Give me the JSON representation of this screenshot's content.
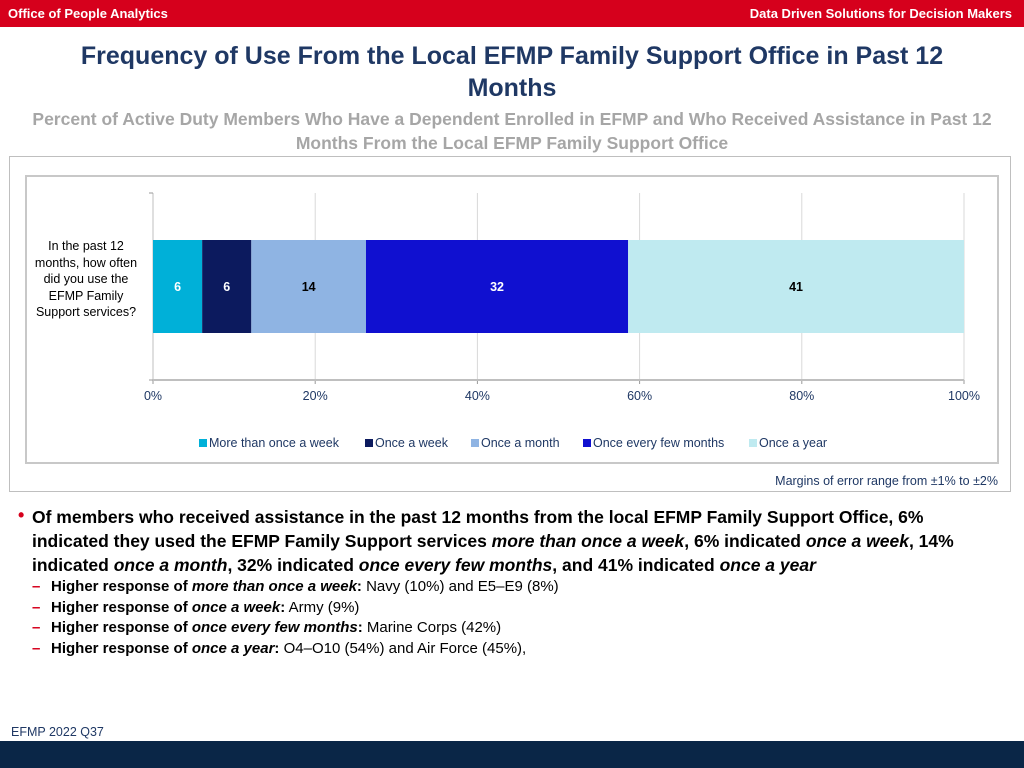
{
  "header": {
    "left_text": "Office of People Analytics",
    "right_text": "Data Driven Solutions for Decision Makers"
  },
  "title": "Frequency of Use From the Local EFMP Family Support Office in Past 12 Months",
  "subtitle": "Percent of Active Duty Members Who Have a Dependent Enrolled in EFMP and Who Received Assistance in Past 12 Months From the Local EFMP Family Support Office",
  "chart_data": {
    "type": "bar",
    "orientation": "horizontal",
    "stacked": true,
    "categories": [
      "In the past 12 months, how often did you use the EFMP Family Support services?"
    ],
    "series": [
      {
        "name": "More than once a week",
        "values": [
          6
        ],
        "color": "#00b0d8"
      },
      {
        "name": "Once a week",
        "values": [
          6
        ],
        "color": "#0c1a5e"
      },
      {
        "name": "Once a month",
        "values": [
          14
        ],
        "color": "#8fb4e3"
      },
      {
        "name": "Once every few months",
        "values": [
          32
        ],
        "color": "#1010d0"
      },
      {
        "name": "Once a year",
        "values": [
          41
        ],
        "color": "#bfeaf0"
      }
    ],
    "x_ticks": [
      "0%",
      "20%",
      "40%",
      "60%",
      "80%",
      "100%"
    ],
    "xlim": [
      0,
      100
    ],
    "grid": true,
    "legend_position": "bottom"
  },
  "margin_note": "Margins of error range from ±1% to ±2%",
  "summary": {
    "main_parts": [
      {
        "text": "Of members who received assistance in the past 12 months from the local EFMP Family Support Office, 6% indicated they used the EFMP Family Support services ",
        "italic": false
      },
      {
        "text": "more than once a week",
        "italic": true
      },
      {
        "text": ", 6% indicated ",
        "italic": false
      },
      {
        "text": "once a week",
        "italic": true
      },
      {
        "text": ", 14% indicated ",
        "italic": false
      },
      {
        "text": "once a month",
        "italic": true
      },
      {
        "text": ", 32% indicated ",
        "italic": false
      },
      {
        "text": "once every few months",
        "italic": true
      },
      {
        "text": ", and 41% indicated ",
        "italic": false
      },
      {
        "text": "once a year",
        "italic": true
      }
    ],
    "sub_bullets": [
      {
        "prefix": "Higher response of ",
        "emph": "more than once a week",
        "colon": ":",
        "text": "  Navy (10%) and E5–E9 (8%)"
      },
      {
        "prefix": "Higher response of ",
        "emph": "once a week",
        "colon": ":",
        "text": "  Army (9%)"
      },
      {
        "prefix": "Higher response of ",
        "emph": "once every few months",
        "colon": ":",
        "text": "  Marine Corps (42%)"
      },
      {
        "prefix": "Higher response of ",
        "emph": "once a year",
        "colon": ":",
        "text": "  O4–O10 (54%) and Air Force (45%),"
      }
    ]
  },
  "footer": {
    "source": "EFMP 2022 Q37"
  }
}
